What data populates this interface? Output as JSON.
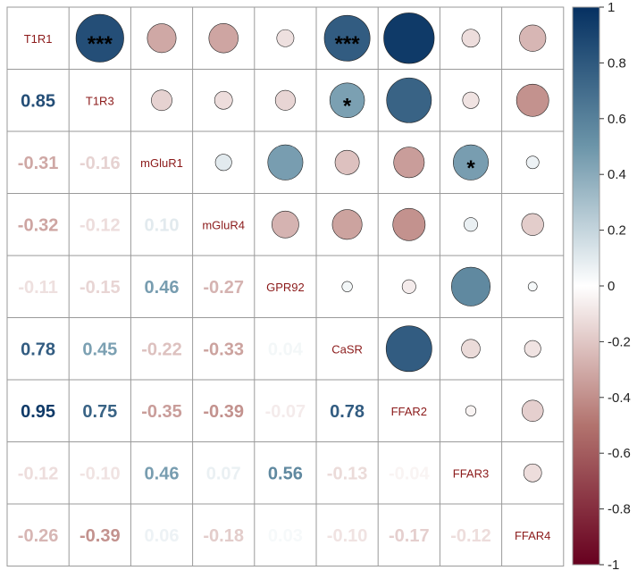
{
  "chart_data": {
    "type": "heatmap",
    "variables": [
      "T1R1",
      "T1R3",
      "mGluR1",
      "mGluR4",
      "GPR92",
      "CaSR",
      "FFAR2",
      "FFAR3",
      "FFAR4"
    ],
    "matrix": [
      [
        1.0,
        0.85,
        -0.31,
        -0.32,
        -0.11,
        0.78,
        0.95,
        -0.12,
        -0.26
      ],
      [
        0.85,
        1.0,
        -0.16,
        -0.12,
        -0.15,
        0.45,
        0.75,
        -0.1,
        -0.39
      ],
      [
        -0.31,
        -0.16,
        1.0,
        0.1,
        0.46,
        -0.22,
        -0.35,
        0.46,
        0.06
      ],
      [
        -0.32,
        -0.12,
        0.1,
        1.0,
        -0.27,
        -0.33,
        -0.39,
        0.07,
        -0.18
      ],
      [
        -0.11,
        -0.15,
        0.46,
        -0.27,
        1.0,
        0.04,
        -0.07,
        0.56,
        0.03
      ],
      [
        0.78,
        0.45,
        -0.22,
        -0.33,
        0.04,
        1.0,
        0.78,
        -0.13,
        -0.1
      ],
      [
        0.95,
        0.75,
        -0.35,
        -0.39,
        -0.07,
        0.78,
        1.0,
        -0.04,
        -0.17
      ],
      [
        -0.12,
        -0.1,
        0.46,
        0.07,
        0.56,
        -0.13,
        -0.04,
        1.0,
        -0.12
      ],
      [
        -0.26,
        -0.39,
        0.06,
        -0.18,
        0.03,
        -0.1,
        -0.17,
        -0.12,
        1.0
      ]
    ],
    "lower_values_text": [
      [
        "0.85"
      ],
      [
        "-0.31",
        "-0.16"
      ],
      [
        "-0.32",
        "-0.12",
        "0.10"
      ],
      [
        "-0.11",
        "-0.15",
        "0.46",
        "-0.27"
      ],
      [
        "0.78",
        "0.45",
        "-0.22",
        "-0.33",
        "0.04"
      ],
      [
        "0.95",
        "0.75",
        "-0.35",
        "-0.39",
        "-0.07",
        "0.78"
      ],
      [
        "-0.12",
        "-0.10",
        "0.46",
        "0.07",
        "0.56",
        "-0.13",
        "-0.04"
      ],
      [
        "-0.26",
        "-0.39",
        "0.06",
        "-0.18",
        "0.03",
        "-0.10",
        "-0.17",
        "-0.12"
      ]
    ],
    "significance": [
      {
        "row": 0,
        "col": 1,
        "stars": "***"
      },
      {
        "row": 0,
        "col": 5,
        "stars": "***"
      },
      {
        "row": 1,
        "col": 5,
        "stars": "*"
      },
      {
        "row": 2,
        "col": 7,
        "stars": "*"
      }
    ],
    "upper_display": "circle",
    "lower_display": "number",
    "color_scale": {
      "min": -1,
      "max": 1,
      "stops": [
        {
          "value": -1,
          "color": "#67001f"
        },
        {
          "value": -0.5,
          "color": "#b2736e"
        },
        {
          "value": 0,
          "color": "#ffffff"
        },
        {
          "value": 0.5,
          "color": "#6c95a9"
        },
        {
          "value": 1,
          "color": "#053061"
        }
      ],
      "ticks": [
        "1",
        "0.8",
        "0.6",
        "0.4",
        "0.2",
        "0",
        "-0.2",
        "-0.4",
        "-0.6",
        "-0.8",
        "-1"
      ]
    },
    "legend_position": "right"
  }
}
